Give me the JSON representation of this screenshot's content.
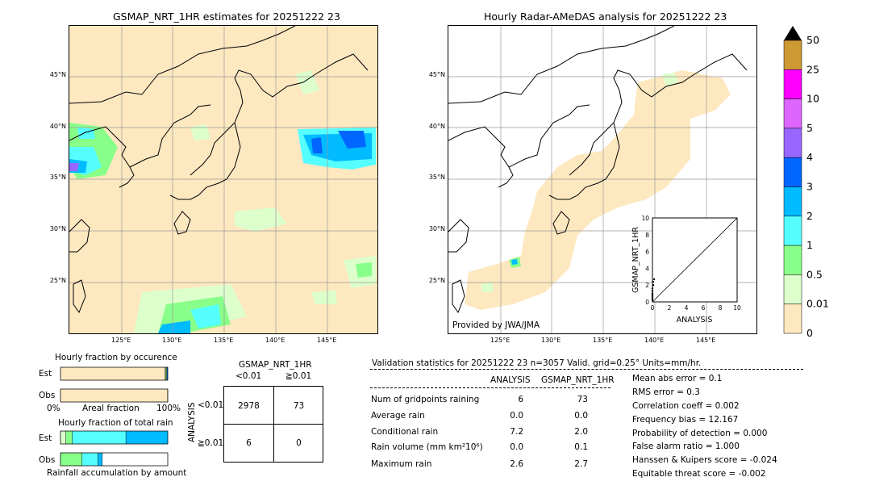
{
  "left_map": {
    "title": "GSMAP_NRT_1HR estimates for 20251222 23",
    "lat_labels": [
      "45°N",
      "40°N",
      "35°N",
      "30°N",
      "25°N"
    ],
    "lon_labels": [
      "125°E",
      "130°E",
      "135°E",
      "140°E",
      "145°E"
    ]
  },
  "right_map": {
    "title": "Hourly Radar-AMeDAS analysis for 20251222 23",
    "lat_labels": [
      "45°N",
      "40°N",
      "35°N",
      "30°N",
      "25°N"
    ],
    "lon_labels": [
      "125°E",
      "130°E",
      "135°E",
      "140°E",
      "145°E"
    ],
    "provider": "Provided by JWA/JMA"
  },
  "inset": {
    "ylabel": "GSMAP_NRT_1HR",
    "xlabel": "ANALYSIS",
    "ticks": [
      "0",
      "2",
      "4",
      "6",
      "8",
      "10"
    ]
  },
  "colorbar": {
    "labels": [
      "50",
      "25",
      "10",
      "5",
      "4",
      "3",
      "2",
      "1",
      "0.5",
      "0.01",
      "0"
    ],
    "colors": [
      "#cc9933",
      "#ff00ff",
      "#dd66ff",
      "#9966ff",
      "#0066ff",
      "#00bbff",
      "#55ffff",
      "#88ff88",
      "#ddffcc",
      "#fde8c0"
    ]
  },
  "fraction_occurrence": {
    "title": "Hourly fraction by occurence",
    "row_labels": [
      "Est",
      "Obs"
    ],
    "axis_left": "0%",
    "axis_mid": "Areal fraction",
    "axis_right": "100%"
  },
  "fraction_total": {
    "title": "Hourly fraction of total rain",
    "row_labels": [
      "Est",
      "Obs"
    ],
    "footer": "Rainfall accumulation by amount"
  },
  "contingency": {
    "title": "GSMAP_NRT_1HR",
    "col_labels": [
      "<0.01",
      "≧0.01"
    ],
    "row_axis": "ANALYSIS",
    "row_labels": [
      "<0.01",
      "≧0.01"
    ],
    "cells": [
      [
        "2978",
        "73"
      ],
      [
        "6",
        "0"
      ]
    ]
  },
  "validation": {
    "header": "Validation statistics for 20251222 23  n=3057 Valid. grid=0.25° Units=mm/hr.",
    "col_analysis": "ANALYSIS",
    "col_gsmap": "GSMAP_NRT_1HR",
    "rows": [
      {
        "label": "Num of gridpoints raining",
        "analysis": "6",
        "gsmap": "73"
      },
      {
        "label": "Average rain",
        "analysis": "0.0",
        "gsmap": "0.0"
      },
      {
        "label": "Conditional rain",
        "analysis": "7.2",
        "gsmap": "2.0"
      },
      {
        "label": "Rain volume (mm km²10⁶)",
        "analysis": "0.0",
        "gsmap": "0.1"
      },
      {
        "label": "Maximum rain",
        "analysis": "2.6",
        "gsmap": "2.7"
      }
    ],
    "scores": [
      "Mean abs error =    0.1",
      "RMS error =    0.3",
      "Correlation coeff =  0.002",
      "Frequency bias = 12.167",
      "Probability of detection =  0.000",
      "False alarm ratio =  1.000",
      "Hanssen & Kuipers score = -0.024",
      "Equitable threat score = -0.002"
    ]
  },
  "chart_data": [
    {
      "type": "scatter",
      "xlabel": "ANALYSIS",
      "ylabel": "GSMAP_NRT_1HR",
      "xlim": [
        0,
        10
      ],
      "ylim": [
        0,
        10
      ],
      "x": [
        0,
        0,
        0,
        0,
        0,
        0,
        0,
        0.1,
        0.1,
        0.2
      ],
      "y": [
        0.2,
        0.4,
        0.6,
        0.8,
        1.0,
        1.3,
        1.6,
        2.0,
        2.4,
        2.7
      ]
    },
    {
      "type": "bar",
      "title": "Hourly fraction by occurence",
      "categories": [
        "Est",
        "Obs"
      ],
      "series": [
        {
          "values": [
            0.976,
            0.998
          ]
        },
        {
          "values": [
            0.004,
            0.001
          ]
        },
        {
          "values": [
            0.01,
            0.0
          ]
        },
        {
          "values": [
            0.008,
            0.001
          ]
        },
        {
          "values": [
            0.002,
            0.0
          ]
        }
      ]
    },
    {
      "type": "bar",
      "title": "Hourly fraction of total rain",
      "categories": [
        "Est",
        "Obs"
      ],
      "series": [
        {
          "values": [
            0.05,
            0.0
          ]
        },
        {
          "values": [
            0.06,
            0.2
          ]
        },
        {
          "values": [
            0.5,
            0.15
          ]
        },
        {
          "values": [
            0.39,
            0.04
          ]
        },
        {
          "values": [
            0.0,
            0.61
          ]
        }
      ]
    },
    {
      "type": "table",
      "title": "GSMAP_NRT_1HR",
      "rows": [
        "<0.01",
        "≧0.01"
      ],
      "columns": [
        "<0.01",
        "≧0.01"
      ],
      "values": [
        [
          2978,
          73
        ],
        [
          6,
          0
        ]
      ]
    }
  ]
}
